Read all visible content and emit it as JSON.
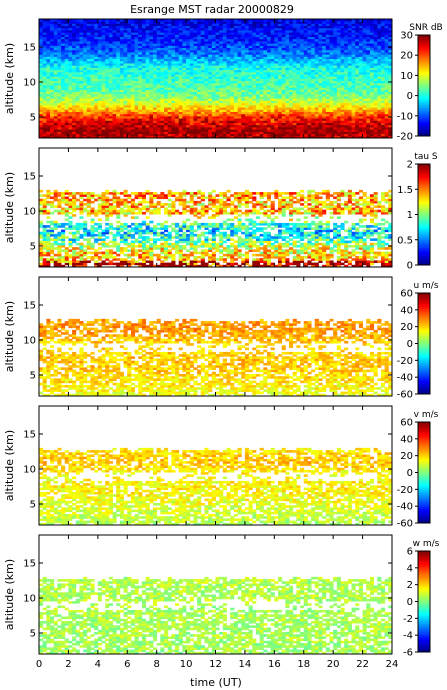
{
  "chart_data": {
    "type": "heatmap",
    "title": "Esrange MST radar 20000829",
    "xlabel": "time (UT)",
    "x_ticks": [
      0,
      2,
      4,
      6,
      8,
      10,
      12,
      14,
      16,
      18,
      20,
      22,
      24
    ],
    "xlim": [
      0,
      24
    ],
    "ylim": [
      2,
      19
    ],
    "panels": [
      {
        "name": "snr",
        "ylabel": "altitude (km)",
        "y_ticks": [
          5,
          10,
          15
        ],
        "colorbar_label": "SNR dB",
        "colorbar_ticks": [
          -20,
          -10,
          0,
          10,
          20,
          30
        ],
        "crange": [
          -20,
          30
        ],
        "coverage": [
          2,
          19
        ],
        "description_profile": [
          [
            2.2,
            27
          ],
          [
            3,
            29
          ],
          [
            4,
            26
          ],
          [
            5,
            22
          ],
          [
            6,
            15
          ],
          [
            7,
            9
          ],
          [
            8,
            5
          ],
          [
            9,
            3
          ],
          [
            10,
            2
          ],
          [
            11,
            1
          ],
          [
            12,
            0
          ],
          [
            13,
            -4
          ],
          [
            14,
            -8
          ],
          [
            16,
            -12
          ],
          [
            19,
            -15
          ]
        ]
      },
      {
        "name": "tau",
        "ylabel": "altitude (km)",
        "y_ticks": [
          5,
          10,
          15
        ],
        "colorbar_label": "tau S",
        "colorbar_ticks": [
          0,
          0.5,
          1,
          1.5,
          2
        ],
        "crange": [
          0,
          2
        ],
        "coverage": [
          2,
          13
        ],
        "description_profile": [
          [
            2.2,
            1.7
          ],
          [
            3,
            1.4
          ],
          [
            4,
            1.3
          ],
          [
            5,
            1.15
          ],
          [
            6,
            0.85
          ],
          [
            7,
            0.7
          ],
          [
            8,
            0.8
          ],
          [
            9,
            1.2
          ],
          [
            10,
            1.4
          ],
          [
            11,
            1.35
          ],
          [
            12,
            1.45
          ],
          [
            13,
            1.4
          ]
        ]
      },
      {
        "name": "u",
        "ylabel": "altitude (km)",
        "y_ticks": [
          5,
          10,
          15
        ],
        "colorbar_label": "u m/s",
        "colorbar_ticks": [
          -60,
          -40,
          -20,
          0,
          20,
          40,
          60
        ],
        "crange": [
          -60,
          60
        ],
        "coverage": [
          2,
          13
        ],
        "description_profile": [
          [
            2.2,
            12
          ],
          [
            3,
            15
          ],
          [
            4,
            18
          ],
          [
            5,
            19
          ],
          [
            6,
            21
          ],
          [
            7,
            22
          ],
          [
            8,
            20
          ],
          [
            9,
            18
          ],
          [
            10,
            22
          ],
          [
            11,
            26
          ],
          [
            12,
            28
          ],
          [
            13,
            25
          ]
        ]
      },
      {
        "name": "v",
        "ylabel": "altitude (km)",
        "y_ticks": [
          5,
          10,
          15
        ],
        "colorbar_label": "v m/s",
        "colorbar_ticks": [
          -60,
          -40,
          -20,
          0,
          20,
          40,
          60
        ],
        "crange": [
          -60,
          60
        ],
        "coverage": [
          2,
          13
        ],
        "description_profile": [
          [
            2.2,
            5
          ],
          [
            3,
            8
          ],
          [
            4,
            10
          ],
          [
            5,
            12
          ],
          [
            6,
            14
          ],
          [
            7,
            16
          ],
          [
            8,
            16
          ],
          [
            9,
            14
          ],
          [
            10,
            18
          ],
          [
            11,
            22
          ],
          [
            12,
            20
          ],
          [
            13,
            16
          ]
        ]
      },
      {
        "name": "w",
        "ylabel": "altitude (km)",
        "y_ticks": [
          5,
          10,
          15
        ],
        "colorbar_label": "w m/s",
        "colorbar_ticks": [
          -6,
          -4,
          -2,
          0,
          2,
          4,
          6
        ],
        "crange": [
          -6,
          6
        ],
        "coverage": [
          2,
          13
        ],
        "description_profile": [
          [
            2.2,
            0.4
          ],
          [
            5,
            0.5
          ],
          [
            8,
            0.5
          ],
          [
            10,
            0.6
          ],
          [
            13,
            0.6
          ]
        ]
      }
    ]
  }
}
